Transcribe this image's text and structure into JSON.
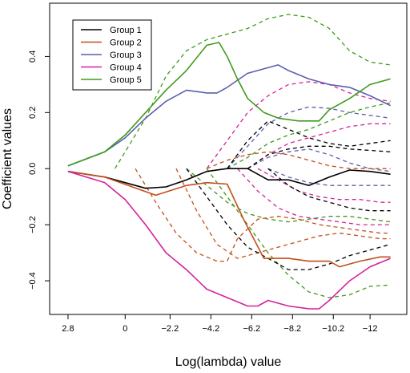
{
  "chart_data": {
    "type": "line",
    "xlabel": "Log(lambda) value",
    "ylabel": "Coefficient values",
    "xlim": [
      3.7,
      -13.8
    ],
    "ylim": [
      -0.52,
      0.59
    ],
    "x_ticks": [
      2.8,
      0,
      -2.2,
      -4.2,
      -6.2,
      -8.2,
      -10.2,
      -12
    ],
    "x_tick_labels": [
      "2.8",
      "0",
      "−2.2",
      "−4.2",
      "−6.2",
      "−8.2",
      "−10.2",
      "−12"
    ],
    "y_ticks": [
      -0.4,
      -0.2,
      0.0,
      0.2,
      0.4
    ],
    "y_tick_labels": [
      "−0.4",
      "−0.2",
      "0.0",
      "0.2",
      "0.4"
    ],
    "grid": false,
    "legend_position": "top-left",
    "colors": {
      "Group 1": "#000000",
      "Group 2": "#c24f1a",
      "Group 3": "#5b5fae",
      "Group 4": "#d4239b",
      "Group 5": "#3f9a1d"
    },
    "series": [
      {
        "name": "Group 1",
        "style": "solid",
        "x": [
          2.8,
          1,
          -1,
          -2,
          -3,
          -4,
          -5,
          -6,
          -7,
          -8,
          -9,
          -10,
          -11,
          -12,
          -13
        ],
        "y": [
          -0.01,
          -0.03,
          -0.07,
          -0.065,
          -0.04,
          -0.01,
          0.0,
          0.0,
          -0.04,
          -0.04,
          -0.06,
          -0.03,
          -0.005,
          -0.01,
          -0.02
        ]
      },
      {
        "name": "Group 2",
        "style": "solid",
        "x": [
          2.8,
          1,
          -1.5,
          -3,
          -4,
          -5,
          -5.8,
          -6.8,
          -8,
          -9,
          -10,
          -10.5,
          -11.5,
          -12.5,
          -13
        ],
        "y": [
          -0.01,
          -0.03,
          -0.095,
          -0.06,
          -0.05,
          -0.055,
          -0.18,
          -0.32,
          -0.32,
          -0.33,
          -0.33,
          -0.35,
          -0.33,
          -0.315,
          -0.315
        ]
      },
      {
        "name": "Group 3",
        "style": "solid",
        "x": [
          2.8,
          1,
          0,
          -1,
          -2,
          -3,
          -4,
          -4.5,
          -5,
          -6,
          -7,
          -7.5,
          -8,
          -9,
          -10,
          -11,
          -12,
          -13
        ],
        "y": [
          0.01,
          0.06,
          0.11,
          0.18,
          0.24,
          0.28,
          0.27,
          0.27,
          0.29,
          0.34,
          0.36,
          0.37,
          0.35,
          0.32,
          0.3,
          0.29,
          0.26,
          0.225
        ]
      },
      {
        "name": "Group 4",
        "style": "solid",
        "x": [
          2.8,
          1,
          0,
          -1,
          -2,
          -3,
          -4,
          -5,
          -6,
          -6.5,
          -7,
          -8,
          -9,
          -9.5,
          -10,
          -11,
          -12,
          -13
        ],
        "y": [
          -0.01,
          -0.05,
          -0.11,
          -0.2,
          -0.3,
          -0.36,
          -0.43,
          -0.46,
          -0.49,
          -0.49,
          -0.47,
          -0.49,
          -0.5,
          -0.5,
          -0.47,
          -0.4,
          -0.35,
          -0.32
        ]
      },
      {
        "name": "Group 5",
        "style": "solid",
        "x": [
          2.8,
          1,
          0,
          -1,
          -2,
          -3,
          -4,
          -4.6,
          -5,
          -5.5,
          -6,
          -6.8,
          -7.5,
          -8.5,
          -9.5,
          -10,
          -11,
          -12,
          -13
        ],
        "y": [
          0.01,
          0.06,
          0.12,
          0.2,
          0.28,
          0.35,
          0.44,
          0.45,
          0.4,
          0.32,
          0.25,
          0.2,
          0.18,
          0.17,
          0.17,
          0.21,
          0.25,
          0.3,
          0.32
        ]
      },
      {
        "name": "",
        "color": "Group 5",
        "style": "dashed",
        "x": [
          0.5,
          -1,
          -2,
          -3,
          -4,
          -5,
          -6,
          -7,
          -8,
          -9,
          -10,
          -11,
          -12,
          -13
        ],
        "y": [
          0.0,
          0.18,
          0.33,
          0.42,
          0.46,
          0.48,
          0.5,
          0.535,
          0.55,
          0.54,
          0.5,
          0.42,
          0.38,
          0.37
        ]
      },
      {
        "name": "",
        "color": "Group 5",
        "style": "dashed",
        "x": [
          -5,
          -6,
          -7,
          -8,
          -9,
          -10,
          -11,
          -12,
          -13
        ],
        "y": [
          0.0,
          0.04,
          0.09,
          0.12,
          0.14,
          0.17,
          0.2,
          0.22,
          0.235
        ]
      },
      {
        "name": "",
        "color": "Group 5",
        "style": "dashed",
        "x": [
          -3,
          -4,
          -5,
          -6,
          -7,
          -8,
          -9,
          -10,
          -11,
          -12,
          -13
        ],
        "y": [
          0.0,
          -0.06,
          -0.12,
          -0.16,
          -0.18,
          -0.19,
          -0.18,
          -0.17,
          -0.17,
          -0.18,
          -0.19
        ]
      },
      {
        "name": "",
        "color": "Group 5",
        "style": "dashed",
        "x": [
          -4,
          -5,
          -6,
          -7,
          -8,
          -9,
          -10,
          -11,
          -12,
          -13
        ],
        "y": [
          0.0,
          -0.1,
          -0.2,
          -0.3,
          -0.38,
          -0.44,
          -0.46,
          -0.45,
          -0.42,
          -0.415
        ]
      },
      {
        "name": "",
        "color": "Group 3",
        "style": "dashed",
        "x": [
          -5,
          -6,
          -7,
          -8,
          -9,
          -10,
          -11,
          -12,
          -13
        ],
        "y": [
          0.0,
          0.08,
          0.16,
          0.2,
          0.22,
          0.215,
          0.2,
          0.19,
          0.18
        ]
      },
      {
        "name": "",
        "color": "Group 3",
        "style": "dashed",
        "x": [
          -6,
          -7,
          -8,
          -9,
          -10,
          -11,
          -12,
          -13
        ],
        "y": [
          0.0,
          0.04,
          0.06,
          0.07,
          0.05,
          0.02,
          0.0,
          -0.01
        ]
      },
      {
        "name": "",
        "color": "Group 3",
        "style": "dashed",
        "x": [
          -7,
          -8,
          -9,
          -10,
          -11,
          -12,
          -13
        ],
        "y": [
          0.0,
          -0.03,
          -0.05,
          -0.06,
          -0.06,
          -0.06,
          -0.06
        ]
      },
      {
        "name": "",
        "color": "Group 4",
        "style": "dashed",
        "x": [
          -4,
          -5,
          -6,
          -7,
          -8,
          -9,
          -10,
          -11,
          -12,
          -13
        ],
        "y": [
          0.0,
          0.1,
          0.2,
          0.26,
          0.3,
          0.31,
          0.3,
          0.27,
          0.25,
          0.24
        ]
      },
      {
        "name": "",
        "color": "Group 4",
        "style": "dashed",
        "x": [
          -6,
          -7,
          -8,
          -9,
          -10,
          -11,
          -12,
          -13
        ],
        "y": [
          0.0,
          0.05,
          0.09,
          0.11,
          0.13,
          0.15,
          0.16,
          0.16
        ]
      },
      {
        "name": "",
        "color": "Group 4",
        "style": "dashed",
        "x": [
          -6.5,
          -7.5,
          -8.5,
          -9.5,
          -10.5,
          -11.5,
          -12.5,
          -13
        ],
        "y": [
          0.0,
          -0.04,
          -0.08,
          -0.1,
          -0.11,
          -0.11,
          -0.12,
          -0.12
        ]
      },
      {
        "name": "",
        "color": "Group 4",
        "style": "dashed",
        "x": [
          -5.5,
          -6.5,
          -7.5,
          -8.5,
          -9.5,
          -10.5,
          -11.5,
          -12.5,
          -13
        ],
        "y": [
          0.0,
          -0.08,
          -0.14,
          -0.17,
          -0.18,
          -0.19,
          -0.2,
          -0.2,
          -0.2
        ]
      },
      {
        "name": "",
        "color": "Group 2",
        "style": "dashed",
        "x": [
          -4,
          -5,
          -6,
          -7,
          -8,
          -9,
          -10,
          -11,
          -12,
          -13
        ],
        "y": [
          0.0,
          0.03,
          0.05,
          0.06,
          0.05,
          0.03,
          0.01,
          0.0,
          0.0,
          0.0
        ]
      },
      {
        "name": "",
        "color": "Group 2",
        "style": "dashed",
        "x": [
          -2.5,
          -3.5,
          -4.5,
          -5.5,
          -6.5,
          -7.5,
          -8.5,
          -9.5,
          -10.5,
          -11.5,
          -12.5,
          -13
        ],
        "y": [
          0.0,
          -0.15,
          -0.27,
          -0.32,
          -0.3,
          -0.28,
          -0.26,
          -0.24,
          -0.23,
          -0.24,
          -0.25,
          -0.25
        ]
      },
      {
        "name": "",
        "color": "Group 2",
        "style": "dashed",
        "x": [
          -0.5,
          -1.5,
          -2.5,
          -3.5,
          -4.5,
          -5,
          -5.5,
          -6.5,
          -7.5,
          -8.5,
          -9.5,
          -10.5,
          -11.5,
          -12.5,
          -13
        ],
        "y": [
          0.0,
          -0.12,
          -0.23,
          -0.3,
          -0.33,
          -0.33,
          -0.25,
          -0.18,
          -0.17,
          -0.18,
          -0.2,
          -0.21,
          -0.22,
          -0.23,
          -0.23
        ]
      },
      {
        "name": "",
        "color": "Group 1",
        "style": "dashed",
        "x": [
          -5,
          -6,
          -7,
          -8,
          -9,
          -10,
          -11,
          -12,
          -13
        ],
        "y": [
          0.0,
          0.1,
          0.17,
          0.14,
          0.11,
          0.09,
          0.08,
          0.09,
          0.1
        ]
      },
      {
        "name": "",
        "color": "Group 1",
        "style": "dashed",
        "x": [
          -6,
          -7,
          -8,
          -9,
          -10,
          -11,
          -12,
          -13
        ],
        "y": [
          0.0,
          0.05,
          0.07,
          0.08,
          0.08,
          0.07,
          0.065,
          0.06
        ]
      },
      {
        "name": "",
        "color": "Group 1",
        "style": "dashed",
        "x": [
          -3,
          -4,
          -5,
          -6,
          -7,
          -8,
          -9,
          -10,
          -11,
          -12,
          -13
        ],
        "y": [
          0.0,
          -0.1,
          -0.2,
          -0.28,
          -0.32,
          -0.36,
          -0.36,
          -0.34,
          -0.31,
          -0.29,
          -0.27
        ]
      },
      {
        "name": "",
        "color": "Group 1",
        "style": "dashed",
        "x": [
          -7,
          -8,
          -9,
          -10,
          -11,
          -12,
          -13
        ],
        "y": [
          0.0,
          -0.06,
          -0.1,
          -0.12,
          -0.14,
          -0.15,
          -0.15
        ]
      }
    ]
  }
}
